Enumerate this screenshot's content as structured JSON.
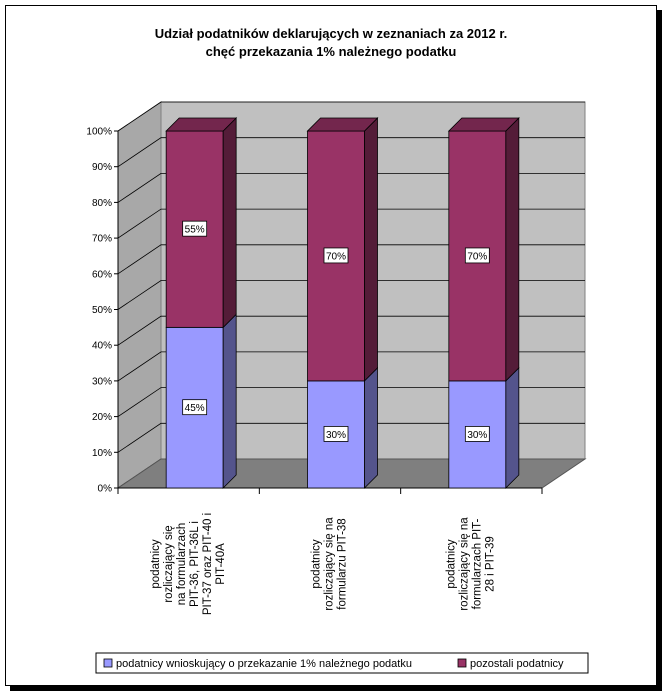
{
  "chart_data": {
    "type": "bar",
    "stacked": true,
    "percent_stacked": true,
    "three_d": true,
    "title": "Udział podatników deklarujących w zeznaniach za 2012 r. chęć przekazania 1% należnego podatku",
    "title_lines": [
      "Udział podatników deklarujących w zeznaniach za 2012 r.",
      "chęć przekazania 1% należnego podatku"
    ],
    "categories": [
      "podatnicy rozliczający się na formularzach PIT-36, PIT-36L i PIT-37 oraz PIT-40 i PIT-40A",
      "podatnicy rozliczający się na formularzu PIT-38",
      "podatnicy rozliczający się na formularzach PIT-28 i PIT-39"
    ],
    "category_lines": [
      [
        "podatnicy",
        "rozliczający się",
        "na formularzach",
        "PIT-36, PIT-36L i",
        "PIT-37 oraz PIT-40 i",
        "PIT-40A"
      ],
      [
        "podatnicy",
        "rozliczający  się na",
        "formularzu PIT-38"
      ],
      [
        "podatnicy",
        "rozliczający się na",
        "formularzach PIT-",
        "28 i PIT-39"
      ]
    ],
    "series": [
      {
        "name": "podatnicy wnioskujący o przekazanie 1% należnego podatku",
        "values": [
          45,
          30,
          30
        ],
        "labels": [
          "45%",
          "30%",
          "30%"
        ],
        "color": "#9999FF"
      },
      {
        "name": "pozostali podatnicy",
        "values": [
          55,
          70,
          70
        ],
        "labels": [
          "55%",
          "70%",
          "70%"
        ],
        "color": "#993366"
      }
    ],
    "ylim": [
      0,
      100
    ],
    "yticks": [
      "0%",
      "10%",
      "20%",
      "30%",
      "40%",
      "50%",
      "60%",
      "70%",
      "80%",
      "90%",
      "100%"
    ],
    "grid": true,
    "legend_position": "bottom"
  }
}
